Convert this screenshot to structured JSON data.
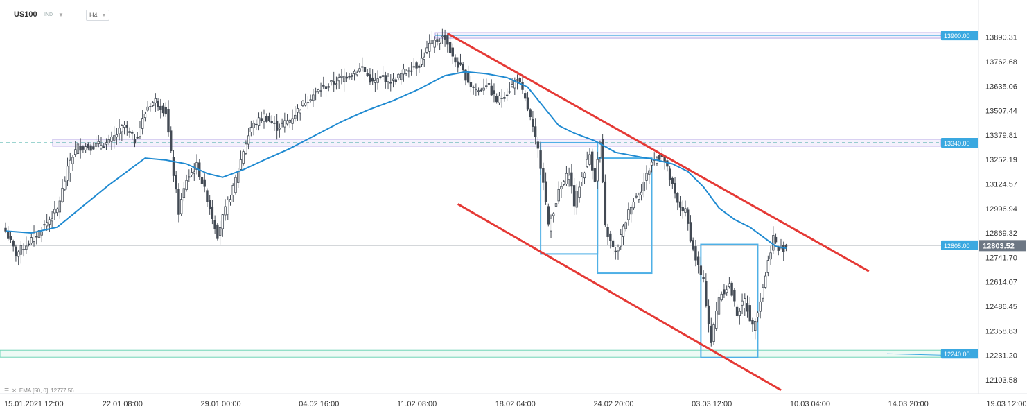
{
  "header": {
    "symbol": "US100",
    "market": "IND",
    "timeframe": "H4",
    "dropdown_icon": "chevron-down-icon"
  },
  "indicator_legend": {
    "icons": [
      "list-icon",
      "close-icon"
    ],
    "label": "EMA [50, 0]",
    "value": "12777.56"
  },
  "colors": {
    "up_candle": "#ffffff",
    "down_candle": "#434a54",
    "candle_outline": "#434a54",
    "ema": "#1f8ad1",
    "trend_line": "#e53935",
    "zone_box": "#4fb0e6",
    "resistance_zone": "#b9a8e6",
    "support_zone": "#6fd4b6",
    "price_label_bg": "#3aa8e0",
    "current_price_bg": "#6d7784"
  },
  "chart_data": {
    "type": "candlestick",
    "ylim": [
      12060,
      13940
    ],
    "y_ticks": [
      "13890.31",
      "13762.68",
      "13635.06",
      "13507.44",
      "13379.81",
      "13252.19",
      "13124.57",
      "12996.94",
      "12869.32",
      "12741.70",
      "12614.07",
      "12486.45",
      "12358.83",
      "12231.20",
      "12103.58"
    ],
    "x_ticks": [
      "15.01.2021  12:00",
      "22.01  08:00",
      "29.01  00:00",
      "04.02  16:00",
      "11.02  08:00",
      "18.02  04:00",
      "24.02  20:00",
      "03.03  12:00",
      "10.03  04:00",
      "14.03  20:00",
      "19.03  12:00"
    ],
    "x_tick_index": [
      0,
      38,
      76,
      114,
      152,
      190,
      228,
      266,
      304,
      342,
      380
    ],
    "levels": [
      {
        "label": "13900.00",
        "value": 13900
      },
      {
        "label": "13340.00",
        "value": 13340
      },
      {
        "label": "12805.00",
        "value": 12805
      },
      {
        "label": "12240.00",
        "value": 12240
      }
    ],
    "current_price": {
      "label": "12803.52",
      "value": 12803.52
    },
    "key_points": [
      {
        "i": 0,
        "v": 12880
      },
      {
        "i": 4,
        "v": 12760
      },
      {
        "i": 12,
        "v": 12860
      },
      {
        "i": 20,
        "v": 12990
      },
      {
        "i": 25,
        "v": 13250
      },
      {
        "i": 28,
        "v": 13320
      },
      {
        "i": 33,
        "v": 13320
      },
      {
        "i": 40,
        "v": 13340
      },
      {
        "i": 46,
        "v": 13430
      },
      {
        "i": 50,
        "v": 13350
      },
      {
        "i": 55,
        "v": 13530
      },
      {
        "i": 58,
        "v": 13560
      },
      {
        "i": 62,
        "v": 13500
      },
      {
        "i": 64,
        "v": 13280
      },
      {
        "i": 67,
        "v": 12980
      },
      {
        "i": 70,
        "v": 13150
      },
      {
        "i": 74,
        "v": 13220
      },
      {
        "i": 78,
        "v": 13050
      },
      {
        "i": 82,
        "v": 12860
      },
      {
        "i": 84,
        "v": 12950
      },
      {
        "i": 88,
        "v": 13100
      },
      {
        "i": 92,
        "v": 13300
      },
      {
        "i": 95,
        "v": 13420
      },
      {
        "i": 100,
        "v": 13480
      },
      {
        "i": 105,
        "v": 13420
      },
      {
        "i": 110,
        "v": 13460
      },
      {
        "i": 116,
        "v": 13560
      },
      {
        "i": 122,
        "v": 13620
      },
      {
        "i": 128,
        "v": 13660
      },
      {
        "i": 133,
        "v": 13700
      },
      {
        "i": 138,
        "v": 13730
      },
      {
        "i": 142,
        "v": 13650
      },
      {
        "i": 146,
        "v": 13680
      },
      {
        "i": 150,
        "v": 13660
      },
      {
        "i": 155,
        "v": 13720
      },
      {
        "i": 160,
        "v": 13750
      },
      {
        "i": 164,
        "v": 13850
      },
      {
        "i": 168,
        "v": 13880
      },
      {
        "i": 170,
        "v": 13895
      },
      {
        "i": 173,
        "v": 13780
      },
      {
        "i": 176,
        "v": 13730
      },
      {
        "i": 180,
        "v": 13640
      },
      {
        "i": 183,
        "v": 13610
      },
      {
        "i": 186,
        "v": 13650
      },
      {
        "i": 190,
        "v": 13560
      },
      {
        "i": 194,
        "v": 13600
      },
      {
        "i": 198,
        "v": 13680
      },
      {
        "i": 202,
        "v": 13520
      },
      {
        "i": 206,
        "v": 13300
      },
      {
        "i": 208,
        "v": 13150
      },
      {
        "i": 210,
        "v": 12900
      },
      {
        "i": 214,
        "v": 13080
      },
      {
        "i": 218,
        "v": 13190
      },
      {
        "i": 220,
        "v": 13020
      },
      {
        "i": 222,
        "v": 13120
      },
      {
        "i": 226,
        "v": 13280
      },
      {
        "i": 228,
        "v": 13150
      },
      {
        "i": 230,
        "v": 13340
      },
      {
        "i": 232,
        "v": 12900
      },
      {
        "i": 234,
        "v": 12820
      },
      {
        "i": 236,
        "v": 12760
      },
      {
        "i": 238,
        "v": 12850
      },
      {
        "i": 242,
        "v": 13020
      },
      {
        "i": 246,
        "v": 13100
      },
      {
        "i": 250,
        "v": 13240
      },
      {
        "i": 254,
        "v": 13280
      },
      {
        "i": 256,
        "v": 13200
      },
      {
        "i": 260,
        "v": 13020
      },
      {
        "i": 263,
        "v": 12980
      },
      {
        "i": 266,
        "v": 12780
      },
      {
        "i": 270,
        "v": 12610
      },
      {
        "i": 273,
        "v": 12300
      },
      {
        "i": 276,
        "v": 12540
      },
      {
        "i": 280,
        "v": 12600
      },
      {
        "i": 283,
        "v": 12450
      },
      {
        "i": 286,
        "v": 12520
      },
      {
        "i": 289,
        "v": 12380
      },
      {
        "i": 292,
        "v": 12520
      },
      {
        "i": 295,
        "v": 12720
      },
      {
        "i": 297,
        "v": 12850
      },
      {
        "i": 299,
        "v": 12780
      },
      {
        "i": 301,
        "v": 12790
      },
      {
        "i": 302,
        "v": 12803.52
      }
    ],
    "ema_points": [
      {
        "i": 0,
        "v": 12880
      },
      {
        "i": 10,
        "v": 12870
      },
      {
        "i": 20,
        "v": 12900
      },
      {
        "i": 30,
        "v": 13010
      },
      {
        "i": 40,
        "v": 13120
      },
      {
        "i": 48,
        "v": 13200
      },
      {
        "i": 54,
        "v": 13260
      },
      {
        "i": 62,
        "v": 13250
      },
      {
        "i": 70,
        "v": 13230
      },
      {
        "i": 78,
        "v": 13180
      },
      {
        "i": 84,
        "v": 13160
      },
      {
        "i": 92,
        "v": 13200
      },
      {
        "i": 100,
        "v": 13250
      },
      {
        "i": 110,
        "v": 13310
      },
      {
        "i": 120,
        "v": 13380
      },
      {
        "i": 130,
        "v": 13450
      },
      {
        "i": 140,
        "v": 13510
      },
      {
        "i": 150,
        "v": 13560
      },
      {
        "i": 160,
        "v": 13620
      },
      {
        "i": 170,
        "v": 13690
      },
      {
        "i": 178,
        "v": 13710
      },
      {
        "i": 186,
        "v": 13700
      },
      {
        "i": 194,
        "v": 13680
      },
      {
        "i": 202,
        "v": 13630
      },
      {
        "i": 208,
        "v": 13530
      },
      {
        "i": 214,
        "v": 13430
      },
      {
        "i": 220,
        "v": 13390
      },
      {
        "i": 228,
        "v": 13350
      },
      {
        "i": 236,
        "v": 13290
      },
      {
        "i": 244,
        "v": 13270
      },
      {
        "i": 252,
        "v": 13250
      },
      {
        "i": 258,
        "v": 13230
      },
      {
        "i": 264,
        "v": 13190
      },
      {
        "i": 270,
        "v": 13110
      },
      {
        "i": 276,
        "v": 13000
      },
      {
        "i": 282,
        "v": 12940
      },
      {
        "i": 288,
        "v": 12900
      },
      {
        "i": 294,
        "v": 12840
      },
      {
        "i": 298,
        "v": 12800
      },
      {
        "i": 302,
        "v": 12790
      }
    ],
    "trend_lines": [
      {
        "name": "upper-channel",
        "from": {
          "i": 171,
          "v": 13910
        },
        "to": {
          "i": 334,
          "v": 12670
        }
      },
      {
        "name": "lower-channel",
        "from": {
          "i": 175,
          "v": 13020
        },
        "to": {
          "i": 300,
          "v": 12050
        }
      }
    ],
    "rectangles": [
      {
        "name": "zone-box-1",
        "i0": 207,
        "i1": 229,
        "v0": 12760,
        "v1": 13340
      },
      {
        "name": "zone-box-2",
        "i0": 229,
        "i1": 250,
        "v0": 12660,
        "v1": 13260
      },
      {
        "name": "zone-box-3",
        "i0": 269,
        "i1": 291,
        "v0": 12220,
        "v1": 12810
      }
    ]
  }
}
